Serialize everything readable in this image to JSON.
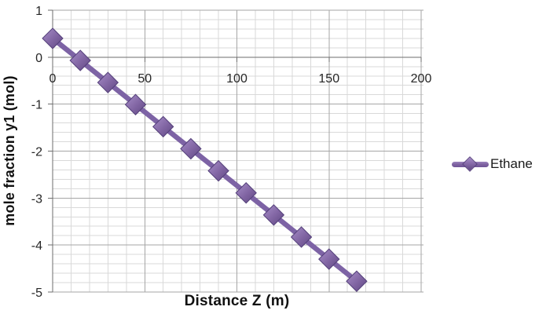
{
  "chart_data": {
    "type": "line",
    "title": "",
    "xlabel": "Distance Z (m)",
    "ylabel": "mole fraction y1 (mol)",
    "series": [
      {
        "name": "Ethane",
        "x": [
          0,
          15,
          30,
          45,
          60,
          75,
          90,
          105,
          120,
          135,
          150,
          165
        ],
        "y": [
          0.4,
          -0.07,
          -0.54,
          -1.01,
          -1.48,
          -1.95,
          -2.42,
          -2.89,
          -3.36,
          -3.83,
          -4.3,
          -4.77
        ]
      }
    ],
    "x_axis": {
      "min": 0,
      "max": 200,
      "minor_unit": 10,
      "major_ticks": [
        0,
        50,
        100,
        150,
        200
      ],
      "tick_labels": [
        "0",
        "50",
        "100",
        "150",
        "200"
      ]
    },
    "y_axis": {
      "min": -5,
      "max": 1,
      "minor_unit": 0.2,
      "major_ticks": [
        1,
        0,
        -1,
        -2,
        -3,
        -4,
        -5
      ],
      "tick_labels": [
        "1",
        "0",
        "-1",
        "-2",
        "-3",
        "-4",
        "-5"
      ]
    },
    "grid": "major-and-minor",
    "legend_position": "right",
    "marker": "diamond",
    "colors": {
      "series": "#7d63a5",
      "marker_light": "#a78ec8",
      "marker_mid": "#8064a2",
      "marker_dark": "#5f4882",
      "marker_edge": "#54407a",
      "grid_minor": "#d9d9d9",
      "grid_major": "#a6a6a6",
      "axis_line": "#6e6e6e",
      "tick_text": "#262626"
    }
  },
  "legend": {
    "items": [
      {
        "label": "Ethane"
      }
    ]
  }
}
